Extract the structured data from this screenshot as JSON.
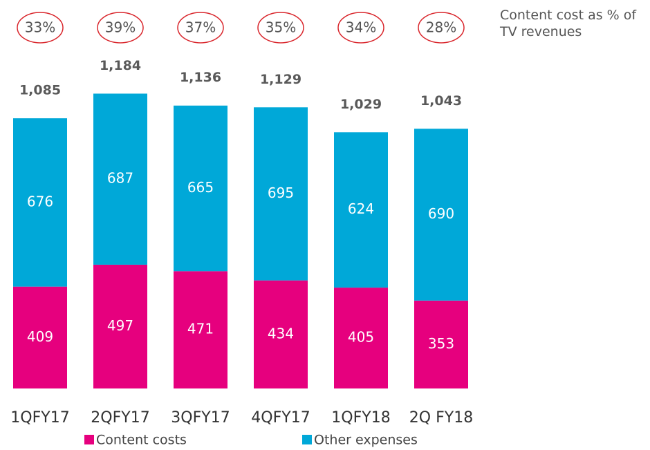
{
  "chart_data": {
    "type": "stacked_bar",
    "categories": [
      "1QFY17",
      "2QFY17",
      "3QFY17",
      "4QFY17",
      "1QFY18",
      "2Q FY18"
    ],
    "series": [
      {
        "name": "Content costs",
        "color": "#e6007e",
        "values": [
          409,
          497,
          471,
          434,
          405,
          353
        ]
      },
      {
        "name": "Other expenses",
        "color": "#00a8d8",
        "values": [
          676,
          687,
          665,
          695,
          624,
          690
        ]
      }
    ],
    "totals": {
      "values": [
        1085,
        1184,
        1136,
        1129,
        1029,
        1043
      ],
      "value_labels": [
        "1,085",
        "1,184",
        "1,136",
        "1,129",
        "1,029",
        "1,043"
      ]
    },
    "content_share": {
      "name": "Content cost as % of TV revenues",
      "values": [
        33,
        39,
        37,
        35,
        34,
        28
      ],
      "value_labels": [
        "33%",
        "39%",
        "37%",
        "35%",
        "34%",
        "28%"
      ],
      "color": "#d9262c"
    },
    "ylim": [
      0,
      1560
    ]
  }
}
